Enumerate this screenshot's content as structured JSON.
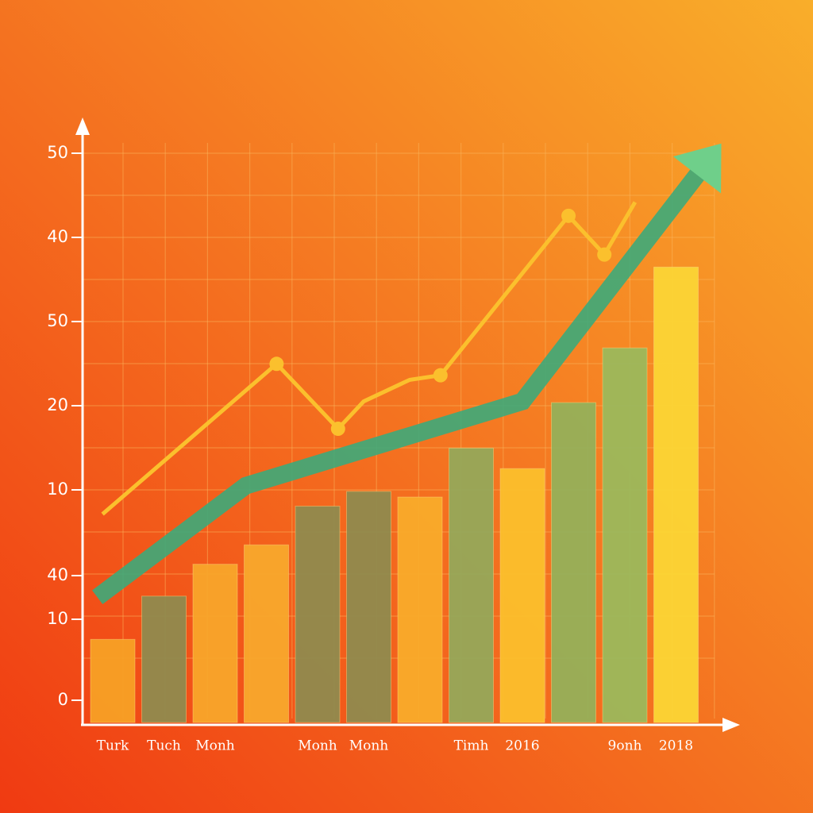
{
  "chart_data": {
    "type": "bar",
    "categories": [
      "Turk",
      "Tuch",
      "Monh",
      null,
      "Monh",
      "Monh",
      null,
      "Timh",
      "2016",
      null,
      "9onh",
      "2018"
    ],
    "values": [
      7.3,
      11.1,
      13.9,
      15.6,
      19.0,
      20.3,
      19.8,
      24.1,
      22.3,
      28.1,
      32.9,
      40.0
    ],
    "colors": [
      "#f7a025",
      "#8f8a4e",
      "#f8a52a",
      "#f8a82c",
      "#8f8a4e",
      "#8f8a4e",
      "#f9ab2a",
      "#95a85a",
      "#fbbf2c",
      "#95b05a",
      "#9bb85c",
      "#fbd535"
    ],
    "ylim": [
      0,
      50
    ],
    "y_axis_labels": [
      "50",
      "40",
      "50",
      "20",
      "10",
      "40",
      "10",
      "0"
    ],
    "lines": [
      {
        "color": "#fbc02d",
        "x": [
          -0.2,
          3.2,
          4.4,
          4.9,
          5.8,
          6.4,
          8.9,
          9.6,
          10.2
        ],
        "values": [
          18.3,
          31.5,
          25.8,
          28.2,
          30.1,
          30.5,
          44.5,
          41.1,
          45.7
        ],
        "markers": [
          false,
          true,
          true,
          false,
          false,
          true,
          true,
          true,
          false
        ]
      },
      {
        "color": "#3daa7a",
        "x": [
          -0.3,
          2.6,
          8.0,
          11.6
        ],
        "values": [
          11.0,
          20.8,
          28.2,
          49.2
        ],
        "arrow": true
      }
    ]
  }
}
